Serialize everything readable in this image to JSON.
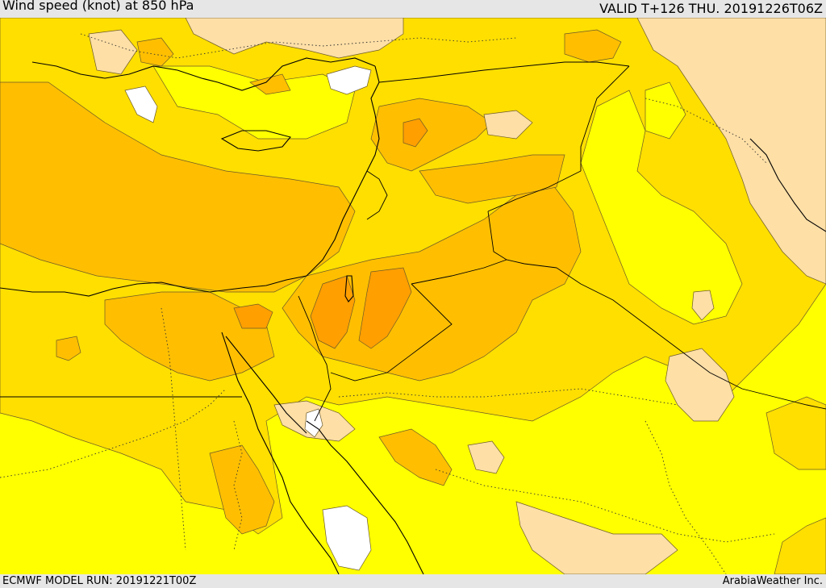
{
  "header": {
    "title": "Wind speed (knot) at 850 hPa",
    "valid": "VALID T+126 THU. 20191226T06Z"
  },
  "footer": {
    "model_run": "ECMWF MODEL RUN: 20191221T00Z",
    "credit": "ArabiaWeather Inc."
  },
  "colors": {
    "band_low": "#ffffff",
    "band_light": "#fedfa6",
    "band_yellow": "#ffff00",
    "band_gold": "#ffdf00",
    "band_amber": "#ffbf00",
    "band_orange": "#ff9f00"
  }
}
